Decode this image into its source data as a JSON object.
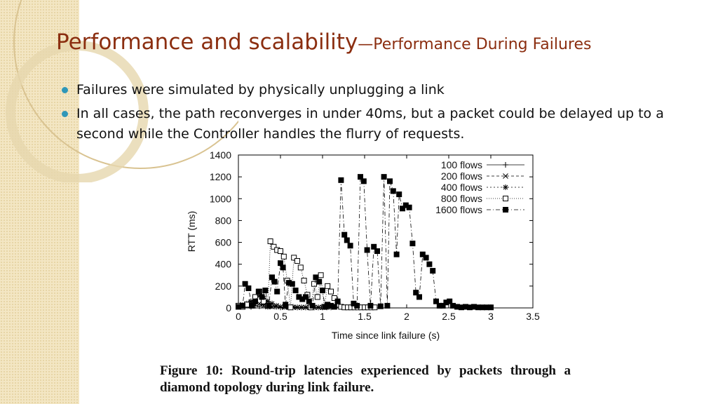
{
  "slide": {
    "title_main": "Performance and scalability",
    "title_sub": "—Performance During Failures",
    "bullets": [
      "Failures were simulated by physically unplugging a link",
      "In all cases, the path reconverges in under 40ms, but a packet could be delayed up to a second while the Controller handles the flurry of requests."
    ],
    "caption": "Figure 10:  Round-trip latencies experienced by packets through a diamond topology during link failure."
  },
  "colors": {
    "title": "#8b2e10",
    "bullet": "#2f97b8",
    "sidebar": "#f3e6c3",
    "series": "#000000"
  },
  "chart_data": {
    "type": "scatter",
    "title": "",
    "xlabel": "Time since link failure (s)",
    "ylabel": "RTT (ms)",
    "xlim": [
      0,
      3.5
    ],
    "ylim": [
      0,
      1400
    ],
    "xticks": [
      "0",
      "0.5",
      "1",
      "1.5",
      "2",
      "2.5",
      "3",
      "3.5"
    ],
    "yticks": [
      "0",
      "200",
      "400",
      "600",
      "800",
      "1000",
      "1200",
      "1400"
    ],
    "legend_position": "top-right",
    "series": [
      {
        "name": "100 flows",
        "marker": "plus",
        "x": [
          0.0,
          0.05,
          0.1,
          0.15,
          0.2,
          0.25,
          0.3,
          0.35,
          0.4,
          0.45,
          0.5,
          0.55,
          0.6,
          0.65,
          0.7,
          0.75,
          0.8,
          0.85,
          0.9,
          0.95,
          1.0
        ],
        "y": [
          20,
          15,
          25,
          10,
          20,
          15,
          30,
          10,
          15,
          10,
          5,
          10,
          5,
          5,
          5,
          5,
          5,
          5,
          5,
          5,
          5
        ]
      },
      {
        "name": "200 flows",
        "marker": "cross",
        "x": [
          0.0,
          0.05,
          0.1,
          0.15,
          0.2,
          0.25,
          0.3,
          0.35,
          0.4,
          0.45,
          0.5,
          0.55,
          0.6,
          0.65,
          0.7,
          0.75,
          0.8,
          0.85,
          0.9,
          0.95,
          1.0
        ],
        "y": [
          10,
          30,
          20,
          50,
          30,
          40,
          20,
          10,
          10,
          20,
          10,
          5,
          10,
          5,
          5,
          5,
          5,
          5,
          5,
          5,
          5
        ]
      },
      {
        "name": "400 flows",
        "marker": "star",
        "x": [
          0.0,
          0.05,
          0.1,
          0.15,
          0.2,
          0.25,
          0.3,
          0.35,
          0.4,
          0.45,
          0.5,
          0.55,
          0.6,
          0.65,
          0.7,
          0.75,
          0.8,
          0.85,
          0.9,
          0.95,
          1.0,
          1.05,
          1.1
        ],
        "y": [
          15,
          25,
          40,
          60,
          80,
          110,
          90,
          60,
          40,
          20,
          10,
          10,
          5,
          10,
          5,
          5,
          5,
          5,
          5,
          5,
          5,
          5,
          5
        ]
      },
      {
        "name": "800 flows",
        "marker": "square-open",
        "x": [
          0.0,
          0.05,
          0.1,
          0.2,
          0.25,
          0.3,
          0.35,
          0.38,
          0.42,
          0.46,
          0.5,
          0.54,
          0.58,
          0.62,
          0.66,
          0.7,
          0.74,
          0.78,
          0.82,
          0.86,
          0.9,
          0.94,
          0.98,
          1.02,
          1.06,
          1.1,
          1.14,
          1.18,
          1.22,
          1.26,
          1.3,
          1.34,
          1.38,
          1.42,
          1.46,
          1.5,
          1.54,
          1.58,
          1.62
        ],
        "y": [
          20,
          10,
          30,
          100,
          150,
          60,
          20,
          610,
          560,
          530,
          520,
          470,
          250,
          5,
          460,
          430,
          370,
          250,
          120,
          5,
          220,
          100,
          300,
          10,
          200,
          150,
          90,
          30,
          10,
          5,
          5,
          5,
          5,
          5,
          5,
          5,
          5,
          5,
          5
        ]
      },
      {
        "name": "1600 flows",
        "marker": "square-filled",
        "x": [
          0.0,
          0.05,
          0.08,
          0.12,
          0.16,
          0.2,
          0.24,
          0.28,
          0.32,
          0.36,
          0.4,
          0.43,
          0.46,
          0.5,
          0.53,
          0.56,
          0.6,
          0.64,
          0.68,
          0.72,
          0.76,
          0.8,
          0.84,
          0.88,
          0.92,
          0.96,
          1.0,
          1.03,
          1.06,
          1.1,
          1.14,
          1.18,
          1.22,
          1.26,
          1.29,
          1.33,
          1.37,
          1.41,
          1.45,
          1.49,
          1.53,
          1.57,
          1.61,
          1.65,
          1.69,
          1.73,
          1.77,
          1.8,
          1.84,
          1.88,
          1.91,
          1.95,
          1.99,
          2.03,
          2.07,
          2.11,
          2.15,
          2.19,
          2.23,
          2.27,
          2.31,
          2.35,
          2.39,
          2.43,
          2.47,
          2.51,
          2.55,
          2.6,
          2.65,
          2.7,
          2.75,
          2.8,
          2.85,
          2.9,
          2.95,
          3.0
        ],
        "y": [
          10,
          20,
          220,
          180,
          20,
          60,
          150,
          100,
          160,
          20,
          280,
          240,
          150,
          410,
          370,
          30,
          230,
          220,
          160,
          100,
          80,
          100,
          60,
          20,
          280,
          240,
          160,
          10,
          30,
          20,
          10,
          60,
          1170,
          670,
          620,
          570,
          40,
          20,
          1200,
          1160,
          530,
          20,
          560,
          520,
          15,
          1200,
          20,
          1160,
          1070,
          490,
          1040,
          910,
          940,
          920,
          590,
          140,
          100,
          490,
          460,
          400,
          340,
          60,
          20,
          20,
          50,
          60,
          20,
          10,
          5,
          10,
          5,
          10,
          5,
          5,
          5,
          5
        ]
      }
    ]
  }
}
